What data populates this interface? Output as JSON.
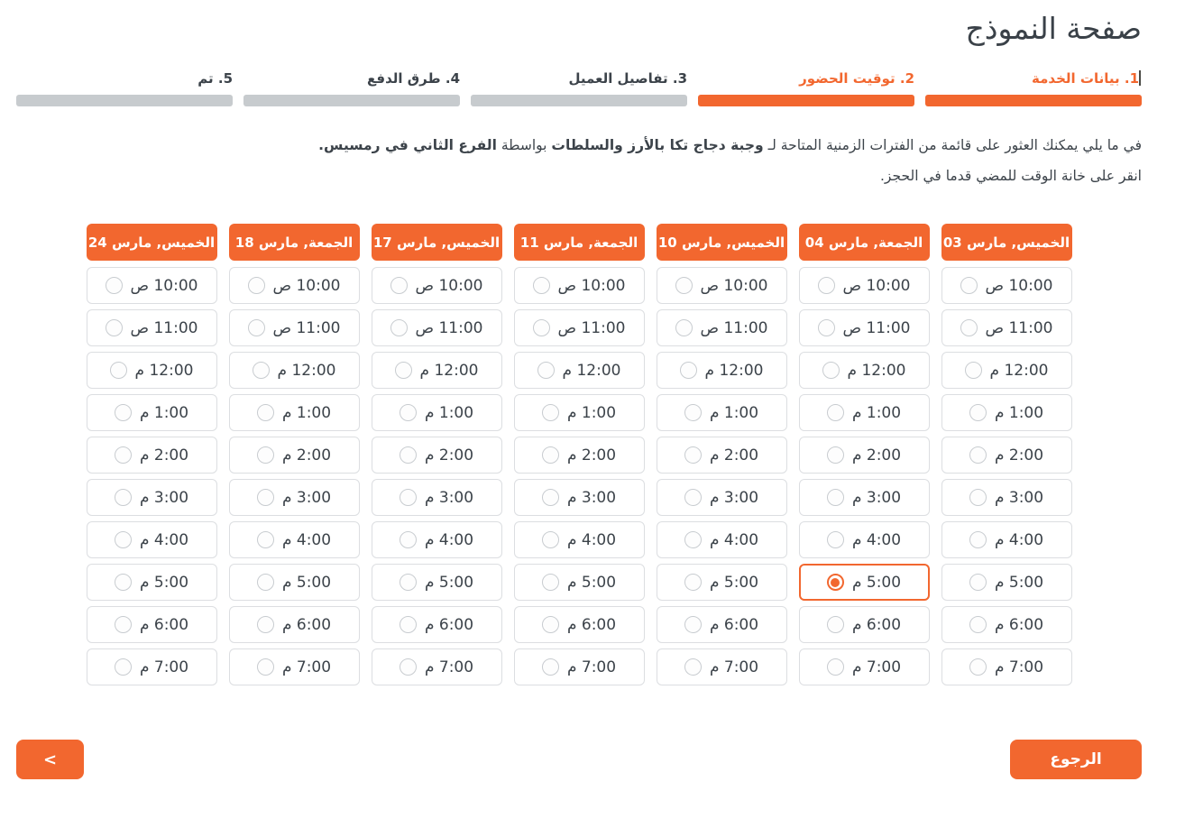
{
  "page": {
    "title": "صفحة النموذج"
  },
  "colors": {
    "accent": "#f2672f",
    "text_dark": "#3c434a",
    "track_gray": "#c7cbce",
    "slot_border": "#dcdee1"
  },
  "stepper": {
    "steps": [
      {
        "label": "1. بيانات الخدمة",
        "active": true,
        "caret": "|"
      },
      {
        "label": "2. توقيت الحضور",
        "active": true
      },
      {
        "label": "3. تفاصيل العميل",
        "active": false
      },
      {
        "label": "4. طرق الدفع",
        "active": false
      },
      {
        "label": "5. تم",
        "active": false
      }
    ]
  },
  "description": {
    "line1": [
      {
        "text": "في ما يلي يمكنك العثور على قائمة من الفترات الزمنية المتاحة لـ ",
        "bold": false
      },
      {
        "text": "وجبة دجاج تكا بالأرز والسلطات",
        "bold": true
      },
      {
        "text": " بواسطة ",
        "bold": false
      },
      {
        "text": "الفرع الثاني في رمسيس.",
        "bold": true
      }
    ],
    "line2": "انقر على خانة الوقت للمضي قدما في الحجز."
  },
  "schedule": {
    "columns": [
      {
        "date": "الخميس, مارس 03"
      },
      {
        "date": "الجمعة, مارس 04"
      },
      {
        "date": "الخميس, مارس 10"
      },
      {
        "date": "الجمعة, مارس 11"
      },
      {
        "date": "الخميس, مارس 17"
      },
      {
        "date": "الجمعة, مارس 18"
      },
      {
        "date": "الخميس, مارس 24"
      }
    ],
    "times": [
      "10:00 ص",
      "11:00 ص",
      "12:00 م",
      "1:00 م",
      "2:00 م",
      "3:00 م",
      "4:00 م",
      "5:00 م",
      "6:00 م",
      "7:00 م"
    ],
    "selected": {
      "column_index": 1,
      "time_index": 7,
      "value": "الجمعة, مارس 04 5:00 م"
    }
  },
  "footer": {
    "back_label": "الرجوع",
    "prev_icon": "<"
  }
}
